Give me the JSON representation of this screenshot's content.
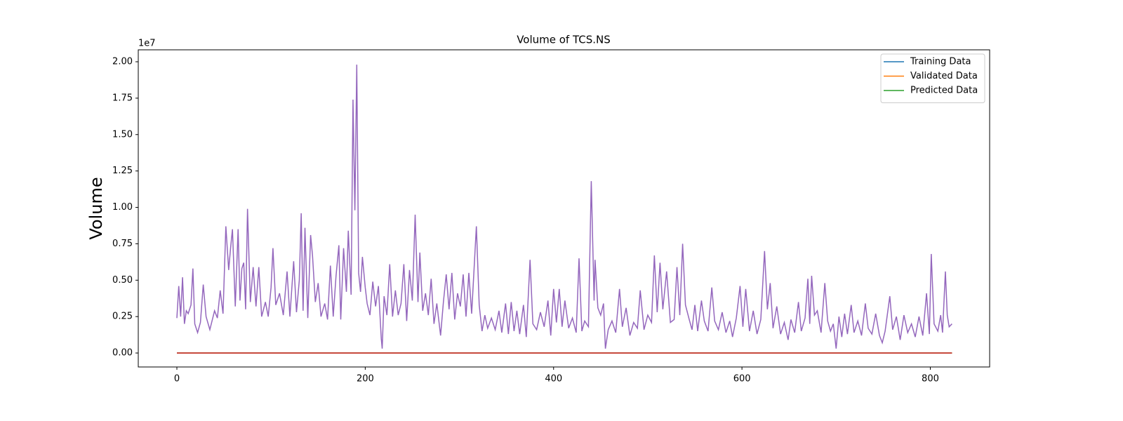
{
  "chart_data": {
    "type": "line",
    "title": "Volume of TCS.NS",
    "y_label": "Volume",
    "y_offset_label": "1e7",
    "xlim": [
      -41,
      863
    ],
    "ylim": [
      -960000,
      20820000
    ],
    "xticks": [
      0,
      200,
      400,
      600,
      800
    ],
    "yticks": [
      {
        "value": 0,
        "label": "0.00"
      },
      {
        "value": 2500000,
        "label": "0.25"
      },
      {
        "value": 5000000,
        "label": "0.50"
      },
      {
        "value": 7500000,
        "label": "0.75"
      },
      {
        "value": 10000000,
        "label": "1.00"
      },
      {
        "value": 12500000,
        "label": "1.25"
      },
      {
        "value": 15000000,
        "label": "1.50"
      },
      {
        "value": 17500000,
        "label": "1.75"
      },
      {
        "value": 20000000,
        "label": "2.00"
      }
    ],
    "grid": false,
    "legend": "upper right",
    "series": [
      {
        "name": "Training Data",
        "color": "#1f77b4",
        "x": [
          0,
          823
        ],
        "values": [
          0,
          0
        ]
      },
      {
        "name": "Validated Data",
        "color": "#ff7f0e",
        "x": [
          0,
          823
        ],
        "values": [
          0,
          0
        ]
      },
      {
        "name": "Predicted Data",
        "color": "#2ca02c",
        "x": [
          0,
          823
        ],
        "values": [
          0,
          0
        ]
      },
      {
        "color": "#9467bd",
        "x": [
          0,
          2,
          4,
          6,
          8,
          10,
          12,
          15,
          17,
          19,
          22,
          25,
          28,
          31,
          35,
          40,
          43,
          46,
          49,
          52,
          55,
          57,
          59,
          62,
          65,
          67,
          69,
          71,
          73,
          75,
          78,
          81,
          84,
          87,
          90,
          94,
          97,
          100,
          102,
          105,
          109,
          113,
          117,
          120,
          124,
          127,
          130,
          132,
          134,
          136,
          139,
          142,
          144,
          147,
          150,
          153,
          157,
          160,
          163,
          166,
          169,
          172,
          174,
          177,
          180,
          182,
          185,
          187,
          189,
          191,
          193,
          195,
          197,
          200,
          202,
          205,
          208,
          211,
          214,
          217,
          218,
          220,
          223,
          226,
          229,
          232,
          235,
          238,
          241,
          244,
          247,
          250,
          253,
          256,
          258,
          261,
          264,
          267,
          270,
          273,
          276,
          280,
          283,
          286,
          289,
          292,
          295,
          298,
          301,
          304,
          307,
          310,
          313,
          318,
          321,
          324,
          327,
          330,
          334,
          338,
          342,
          345,
          349,
          352,
          355,
          358,
          361,
          364,
          368,
          371,
          375,
          378,
          382,
          386,
          390,
          394,
          397,
          400,
          403,
          406,
          409,
          412,
          416,
          420,
          424,
          427,
          430,
          433,
          437,
          440,
          443,
          444,
          447,
          450,
          453,
          455,
          458,
          462,
          466,
          470,
          473,
          477,
          481,
          485,
          489,
          492,
          496,
          500,
          504,
          507,
          510,
          513,
          516,
          520,
          524,
          528,
          531,
          534,
          537,
          540,
          544,
          547,
          550,
          553,
          557,
          560,
          564,
          568,
          571,
          575,
          579,
          583,
          587,
          590,
          594,
          598,
          601,
          604,
          608,
          612,
          616,
          620,
          624,
          627,
          630,
          633,
          637,
          641,
          645,
          649,
          652,
          656,
          660,
          663,
          667,
          670,
          672,
          674,
          677,
          680,
          684,
          688,
          691,
          694,
          697,
          700,
          703,
          706,
          709,
          712,
          716,
          719,
          723,
          727,
          731,
          734,
          738,
          742,
          746,
          749,
          752,
          757,
          760,
          764,
          768,
          772,
          776,
          780,
          784,
          788,
          792,
          796,
          799,
          801,
          804,
          808,
          811,
          813,
          816,
          818,
          820,
          823
        ],
        "values": [
          2400000.0,
          4600000.0,
          2500000.0,
          5200000.0,
          2000000.0,
          2900000.0,
          2700000.0,
          3300000.0,
          5800000.0,
          2000000.0,
          1400000.0,
          2100000.0,
          4700000.0,
          2500000.0,
          1600000.0,
          2900000.0,
          2400000.0,
          4300000.0,
          2700000.0,
          8700000.0,
          5700000.0,
          7200000.0,
          8500000.0,
          3200000.0,
          8500000.0,
          3600000.0,
          5800000.0,
          6200000.0,
          3000000.0,
          9900000.0,
          3500000.0,
          5900000.0,
          3200000.0,
          5900000.0,
          2500000.0,
          3500000.0,
          2500000.0,
          4500000.0,
          7200000.0,
          3300000.0,
          4100000.0,
          2600000.0,
          5600000.0,
          2500000.0,
          6300000.0,
          2800000.0,
          5000000.0,
          9600000.0,
          2900000.0,
          8600000.0,
          2400000.0,
          8100000.0,
          6700000.0,
          3500000.0,
          4800000.0,
          2500000.0,
          3400000.0,
          2300000.0,
          6000000.0,
          2500000.0,
          5300000.0,
          7400000.0,
          2300000.0,
          7200000.0,
          4200000.0,
          8400000.0,
          4000000.0,
          17400000.0,
          9800000.0,
          19800000.0,
          5500000.0,
          4200000.0,
          6600000.0,
          4500000.0,
          3400000.0,
          2600000.0,
          4900000.0,
          3200000.0,
          4600000.0,
          1000000.0,
          300000.0,
          3900000.0,
          2600000.0,
          6100000.0,
          2500000.0,
          4300000.0,
          2600000.0,
          3400000.0,
          6100000.0,
          2200000.0,
          5700000.0,
          3600000.0,
          9500000.0,
          3500000.0,
          6900000.0,
          2900000.0,
          4100000.0,
          2600000.0,
          5100000.0,
          2000000.0,
          3400000.0,
          1200000.0,
          3500000.0,
          5400000.0,
          3000000.0,
          5500000.0,
          2300000.0,
          4100000.0,
          3200000.0,
          5400000.0,
          2500000.0,
          5500000.0,
          2700000.0,
          8700000.0,
          3300000.0,
          1500000.0,
          2600000.0,
          1700000.0,
          2400000.0,
          1600000.0,
          2900000.0,
          1400000.0,
          3400000.0,
          1300000.0,
          3500000.0,
          1500000.0,
          2900000.0,
          1300000.0,
          3300000.0,
          1100000.0,
          6400000.0,
          2000000.0,
          1600000.0,
          2800000.0,
          1800000.0,
          3600000.0,
          1200000.0,
          4400000.0,
          2100000.0,
          4400000.0,
          1800000.0,
          3600000.0,
          1700000.0,
          2400000.0,
          1400000.0,
          6500000.0,
          1500000.0,
          2200000.0,
          1800000.0,
          11800000.0,
          3600000.0,
          6400000.0,
          3100000.0,
          2600000.0,
          3400000.0,
          300000.0,
          1600000.0,
          2200000.0,
          1400000.0,
          4400000.0,
          1800000.0,
          3100000.0,
          1200000.0,
          2100000.0,
          1700000.0,
          4300000.0,
          1600000.0,
          2600000.0,
          2100000.0,
          6700000.0,
          2800000.0,
          6200000.0,
          3000000.0,
          5600000.0,
          2100000.0,
          2300000.0,
          5900000.0,
          2600000.0,
          7500000.0,
          3300000.0,
          2300000.0,
          1600000.0,
          3300000.0,
          1500000.0,
          3600000.0,
          2200000.0,
          1500000.0,
          4500000.0,
          2200000.0,
          1600000.0,
          2800000.0,
          1400000.0,
          2200000.0,
          1100000.0,
          2400000.0,
          4600000.0,
          1800000.0,
          4400000.0,
          1500000.0,
          2900000.0,
          1300000.0,
          2300000.0,
          7000000.0,
          3000000.0,
          4800000.0,
          1700000.0,
          3200000.0,
          1300000.0,
          2100000.0,
          900000.0,
          2300000.0,
          1400000.0,
          3500000.0,
          1500000.0,
          2400000.0,
          5100000.0,
          2000000.0,
          5300000.0,
          2600000.0,
          2900000.0,
          1400000.0,
          4800000.0,
          2200000.0,
          1500000.0,
          2000000.0,
          300000.0,
          2500000.0,
          1100000.0,
          2700000.0,
          1300000.0,
          3300000.0,
          1400000.0,
          2200000.0,
          1200000.0,
          3400000.0,
          1700000.0,
          1300000.0,
          2700000.0,
          1200000.0,
          700000.0,
          1500000.0,
          3900000.0,
          1600000.0,
          2500000.0,
          900000.0,
          2600000.0,
          1400000.0,
          2000000.0,
          1100000.0,
          2500000.0,
          1200000.0,
          4100000.0,
          1300000.0,
          6800000.0,
          2000000.0,
          1500000.0,
          2600000.0,
          1400000.0,
          5600000.0,
          2600000.0,
          1800000.0,
          2000000.0
        ]
      },
      {
        "color": "#d62728",
        "x": [
          0,
          823
        ],
        "values": [
          0,
          0
        ]
      }
    ]
  }
}
